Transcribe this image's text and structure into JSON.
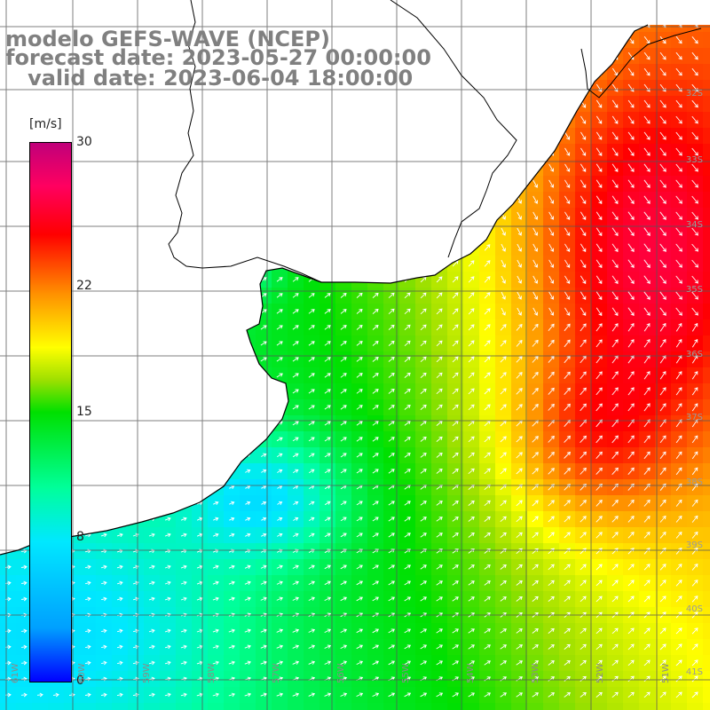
{
  "header": {
    "model_line": "modelo GEFS-WAVE (NCEP)",
    "forecast_line": "forecast date: 2023-05-27 00:00:00",
    "valid_line": "   valid date: 2023-06-04 18:00:00"
  },
  "colorbar": {
    "unit": "[m/s]",
    "ticks": [
      {
        "label": "30",
        "value": 30
      },
      {
        "label": "22",
        "value": 22
      },
      {
        "label": "15",
        "value": 15
      },
      {
        "label": "8",
        "value": 8
      },
      {
        "label": "0",
        "value": 0
      }
    ],
    "min": 0,
    "max": 30
  },
  "lat_labels": [
    "32S",
    "33S",
    "34S",
    "35S",
    "36S",
    "37S",
    "38S",
    "39S",
    "40S",
    "41S"
  ],
  "lon_labels": [
    "61W",
    "60W",
    "59W",
    "58W",
    "57W",
    "56W",
    "55W",
    "54W",
    "53W",
    "52W",
    "51W"
  ],
  "colors": {
    "land": "#ffffff",
    "grid": "#555555",
    "coast": "#000000",
    "arrow": "#ffffff",
    "title": "#808080"
  },
  "field": {
    "variable": "wind speed",
    "units": "m/s",
    "vector_icon": "wind-arrow-icon"
  }
}
